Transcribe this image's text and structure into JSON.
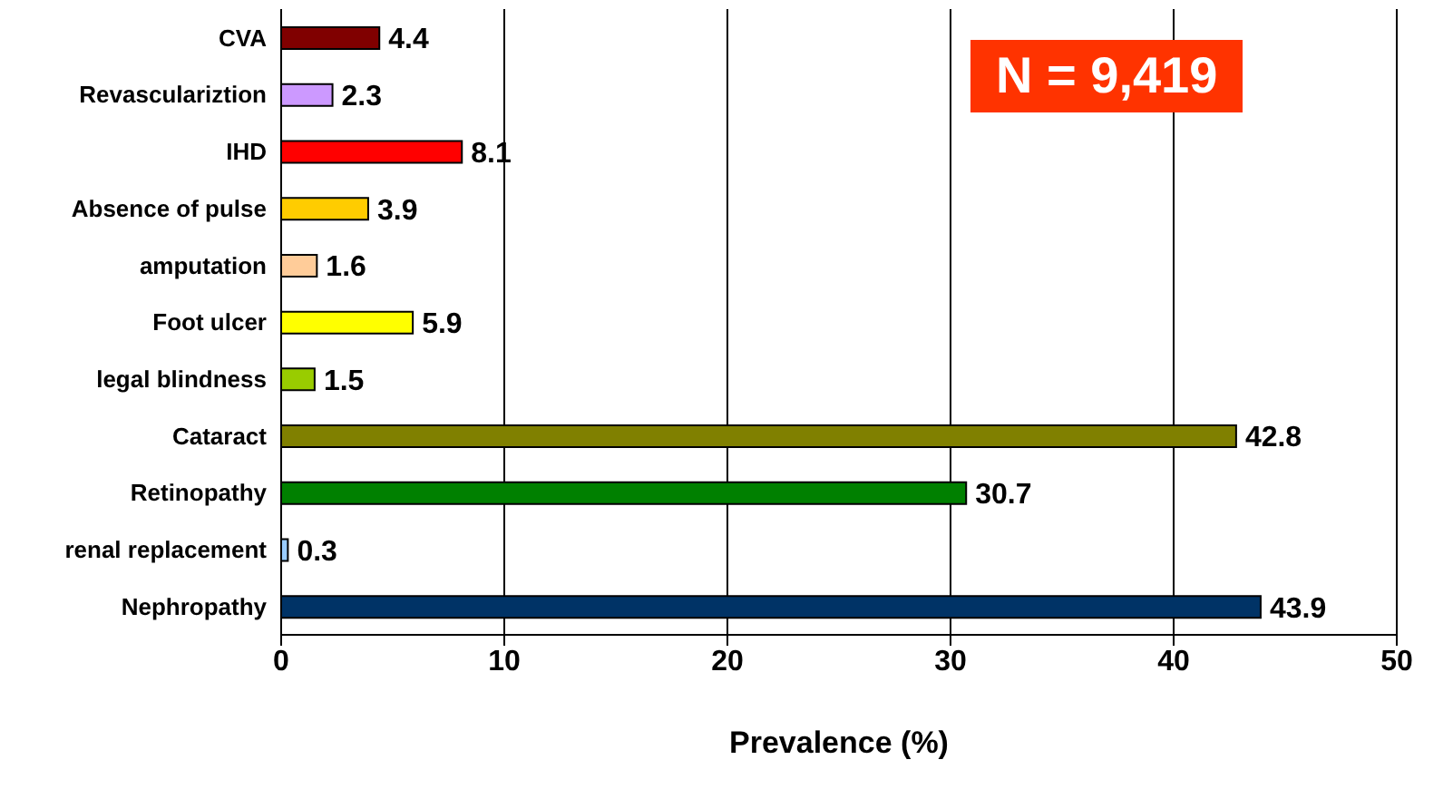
{
  "chart_data": {
    "type": "bar",
    "orientation": "horizontal",
    "xlabel": "Prevalence (%)",
    "categories": [
      "CVA",
      "Revasculariztion",
      "IHD",
      "Absence of pulse",
      "amputation",
      "Foot ulcer",
      "legal blindness",
      "Cataract",
      "Retinopathy",
      "renal replacement",
      "Nephropathy"
    ],
    "values": [
      4.4,
      2.3,
      8.1,
      3.9,
      1.6,
      5.9,
      1.5,
      42.8,
      30.7,
      0.3,
      43.9
    ],
    "colors": [
      "#800000",
      "#cc99ff",
      "#ff0000",
      "#ffcc00",
      "#ffcc99",
      "#ffff00",
      "#99cc00",
      "#808000",
      "#008000",
      "#99ccff",
      "#003366"
    ],
    "xlim": [
      0,
      50
    ],
    "xticks": [
      0,
      10,
      20,
      30,
      40,
      50
    ],
    "grid": "x",
    "data_labels": true,
    "legend": false,
    "annotations": [
      "N = 9,419"
    ]
  }
}
